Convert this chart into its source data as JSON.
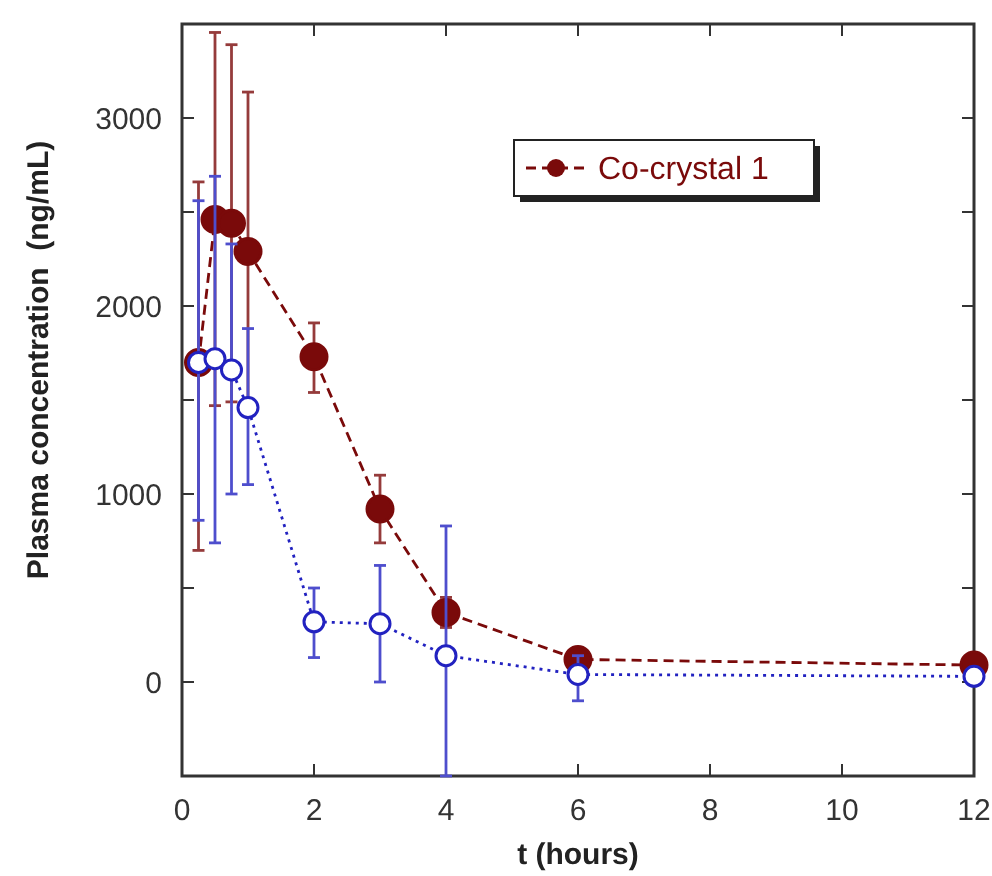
{
  "chart_data": {
    "type": "line",
    "xlabel": "t (hours)",
    "ylabel": "Plasma concentration  (ng/mL)",
    "xlim": [
      0,
      12
    ],
    "xticks": [
      0,
      2,
      4,
      6,
      8,
      10,
      12
    ],
    "ylim": [
      -500,
      3500
    ],
    "yticks": [
      {
        "value": -500,
        "label": null
      },
      0,
      {
        "value": 500,
        "label": null
      },
      1000,
      {
        "value": 1500,
        "label": null
      },
      2000,
      {
        "value": 2500,
        "label": null
      },
      3000
    ],
    "legend": "top right",
    "grid": false,
    "marker": "circle",
    "series": [
      {
        "name": "Co-crystal 1",
        "color": "#7a0a0a",
        "line_style": "dashed",
        "x": [
          0.25,
          0.5,
          0.75,
          1,
          2,
          3,
          4,
          6,
          12
        ],
        "values": [
          1700,
          2460,
          2440,
          2290,
          1730,
          920,
          370,
          120,
          90
        ],
        "errors": [
          [
            700,
            2660
          ],
          [
            1470,
            3455
          ],
          [
            1490,
            3390
          ],
          [
            1440,
            3138
          ],
          [
            1540,
            1910
          ],
          [
            740,
            1100
          ],
          [
            290,
            450
          ],
          null,
          null
        ]
      },
      {
        "color": "#2222c0",
        "line_style": "dotted",
        "x": [
          0.25,
          0.5,
          0.75,
          1,
          2,
          3,
          4,
          6,
          12
        ],
        "values": [
          1700,
          1720,
          1660,
          1460,
          320,
          310,
          140,
          40,
          30
        ],
        "errors": [
          [
            860,
            2560
          ],
          [
            740,
            2690
          ],
          [
            1000,
            2330
          ],
          [
            1050,
            1880
          ],
          [
            130,
            500
          ],
          [
            0,
            620
          ],
          [
            -500,
            830
          ],
          [
            -100,
            140
          ],
          null
        ]
      }
    ]
  }
}
